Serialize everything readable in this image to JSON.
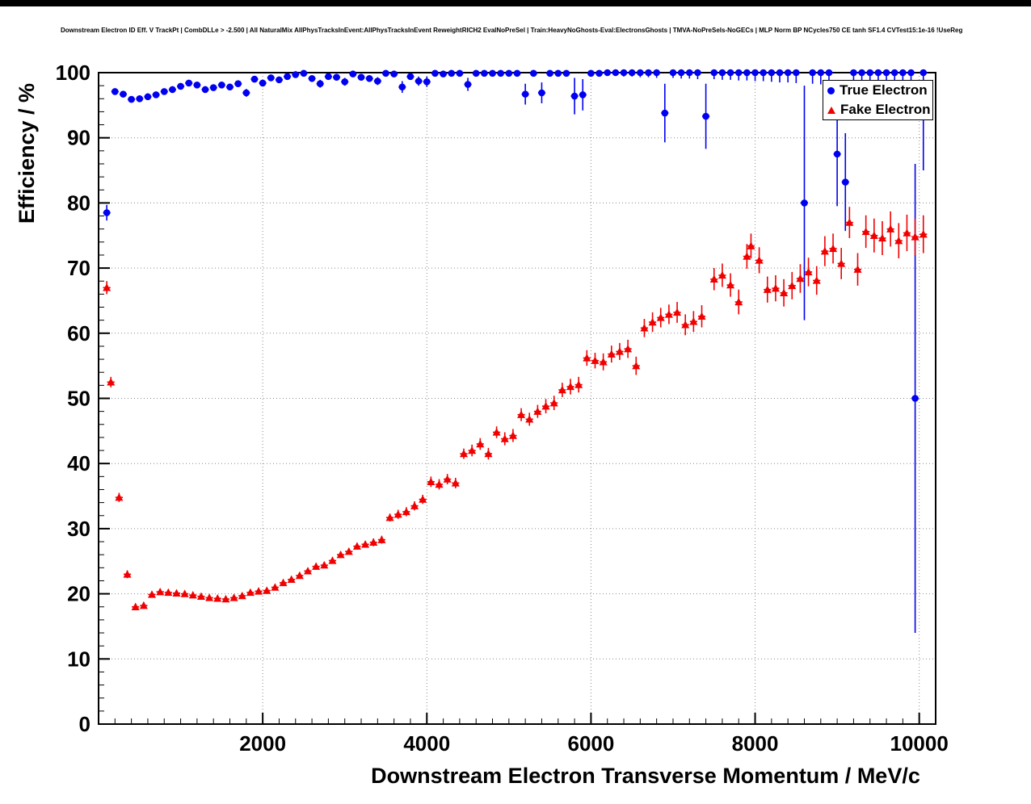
{
  "title": "Downstream Electron ID Eff. V TrackPt | CombDLLe > -2.500 | All NaturalMix AllPhysTracksInEvent:AllPhysTracksInEvent ReweightRICH2 EvalNoPreSel | Train:HeavyNoGhosts-Eval:ElectronsGhosts | TMVA-NoPreSels-NoGECs | MLP Norm BP NCycles750 CE tanh SF1.4 CVTest15:1e-16 !UseReg",
  "chart_data": {
    "type": "scatter",
    "xlabel": "Downstream Electron Transverse Momentum / MeV/c",
    "ylabel": "Efficiency / %",
    "xlim": [
      0,
      10200
    ],
    "ylim": [
      0,
      100
    ],
    "x_ticks": [
      2000,
      4000,
      6000,
      8000,
      10000
    ],
    "y_ticks": [
      0,
      10,
      20,
      30,
      40,
      50,
      60,
      70,
      80,
      90,
      100
    ],
    "grid": "dotted",
    "legend": {
      "position": "top-right",
      "entries": [
        {
          "label": "True Electron",
          "color": "#0000f0",
          "marker": "circle"
        },
        {
          "label": "Fake Electron",
          "color": "#f00000",
          "marker": "triangle"
        }
      ]
    },
    "series": [
      {
        "name": "True Electron",
        "marker": "circle",
        "color": "#0000f0",
        "points": [
          [
            100,
            78.5,
            1.2
          ],
          [
            200,
            97.1,
            0.5
          ],
          [
            300,
            96.7,
            0.5
          ],
          [
            400,
            95.9,
            0.5
          ],
          [
            500,
            96.0,
            0.5
          ],
          [
            600,
            96.3,
            0.5
          ],
          [
            700,
            96.6,
            0.4
          ],
          [
            800,
            97.1,
            0.4
          ],
          [
            900,
            97.4,
            0.4
          ],
          [
            1000,
            97.9,
            0.4
          ],
          [
            1100,
            98.4,
            0.4
          ],
          [
            1200,
            98.1,
            0.4
          ],
          [
            1300,
            97.4,
            0.5
          ],
          [
            1400,
            97.7,
            0.5
          ],
          [
            1500,
            98.1,
            0.5
          ],
          [
            1600,
            97.8,
            0.5
          ],
          [
            1700,
            98.3,
            0.5
          ],
          [
            1800,
            96.9,
            0.6
          ],
          [
            1900,
            99.0,
            0.4
          ],
          [
            2000,
            98.4,
            0.5
          ],
          [
            2100,
            99.2,
            0.4
          ],
          [
            2200,
            98.9,
            0.5
          ],
          [
            2300,
            99.4,
            0.4
          ],
          [
            2400,
            99.7,
            0.3
          ],
          [
            2500,
            99.9,
            0.2
          ],
          [
            2600,
            99.1,
            0.4
          ],
          [
            2700,
            98.3,
            0.6
          ],
          [
            2800,
            99.4,
            0.4
          ],
          [
            2900,
            99.3,
            0.4
          ],
          [
            3000,
            98.6,
            0.6
          ],
          [
            3100,
            99.8,
            0.3
          ],
          [
            3200,
            99.3,
            0.5
          ],
          [
            3300,
            99.1,
            0.5
          ],
          [
            3400,
            98.7,
            0.6
          ],
          [
            3500,
            99.9,
            0.2
          ],
          [
            3600,
            99.8,
            0.3
          ],
          [
            3700,
            97.8,
            0.9
          ],
          [
            3800,
            99.4,
            0.5
          ],
          [
            3900,
            98.7,
            0.7
          ],
          [
            4000,
            98.6,
            0.8
          ],
          [
            4100,
            99.9,
            0.2
          ],
          [
            4200,
            99.8,
            0.3
          ],
          [
            4300,
            99.9,
            0.2
          ],
          [
            4400,
            99.9,
            0.3
          ],
          [
            4500,
            98.2,
            1.0
          ],
          [
            4600,
            99.9,
            0.2
          ],
          [
            4700,
            99.9,
            0.2
          ],
          [
            4800,
            99.9,
            0.3
          ],
          [
            4900,
            99.9,
            0.3
          ],
          [
            5000,
            99.9,
            0.3
          ],
          [
            5100,
            99.9,
            0.4
          ],
          [
            5200,
            96.7,
            1.6
          ],
          [
            5300,
            99.9,
            0.3
          ],
          [
            5400,
            96.9,
            1.6
          ],
          [
            5500,
            99.9,
            0.4
          ],
          [
            5600,
            99.9,
            0.4
          ],
          [
            5700,
            99.9,
            0.4
          ],
          [
            5800,
            96.4,
            2.8
          ],
          [
            5900,
            96.6,
            2.4
          ],
          [
            6000,
            99.9,
            0.5
          ],
          [
            6100,
            99.9,
            0.5
          ],
          [
            6200,
            100,
            0.5
          ],
          [
            6300,
            100,
            0.5
          ],
          [
            6400,
            100,
            0.6
          ],
          [
            6500,
            100,
            0.6
          ],
          [
            6600,
            100,
            0.7
          ],
          [
            6700,
            100,
            0.7
          ],
          [
            6800,
            100,
            0.8
          ],
          [
            6900,
            93.8,
            4.5
          ],
          [
            7000,
            100,
            0.8
          ],
          [
            7100,
            100,
            0.9
          ],
          [
            7200,
            100,
            0.9
          ],
          [
            7300,
            100,
            1.0
          ],
          [
            7400,
            93.3,
            5.0
          ],
          [
            7500,
            100,
            1.0
          ],
          [
            7600,
            100,
            1.1
          ],
          [
            7700,
            100,
            1.1
          ],
          [
            7800,
            100,
            1.2
          ],
          [
            7900,
            100,
            1.2
          ],
          [
            8000,
            100,
            1.3
          ],
          [
            8100,
            100,
            1.3
          ],
          [
            8200,
            100,
            1.4
          ],
          [
            8300,
            100,
            1.5
          ],
          [
            8400,
            100,
            1.5
          ],
          [
            8500,
            100,
            1.6
          ],
          [
            8600,
            80.0,
            18.0
          ],
          [
            8700,
            100,
            1.7
          ],
          [
            8800,
            100,
            1.8
          ],
          [
            8900,
            100,
            1.9
          ],
          [
            9000,
            87.5,
            8.0
          ],
          [
            9100,
            83.2,
            7.5
          ],
          [
            9200,
            100,
            2.0
          ],
          [
            9300,
            100,
            2.1
          ],
          [
            9400,
            100,
            2.2
          ],
          [
            9500,
            100,
            2.3
          ],
          [
            9600,
            100,
            2.4
          ],
          [
            9700,
            100,
            2.5
          ],
          [
            9800,
            100,
            2.6
          ],
          [
            9900,
            100,
            2.8
          ],
          [
            9950,
            50.0,
            36.0
          ],
          [
            10050,
            100,
            15.0
          ]
        ]
      },
      {
        "name": "Fake Electron",
        "marker": "triangle",
        "color": "#f00000",
        "points": [
          [
            100,
            67.0,
            1.0
          ],
          [
            150,
            52.5,
            0.8
          ],
          [
            250,
            34.8,
            0.7
          ],
          [
            350,
            23.0,
            0.6
          ],
          [
            450,
            18.0,
            0.5
          ],
          [
            550,
            18.2,
            0.5
          ],
          [
            650,
            19.9,
            0.4
          ],
          [
            750,
            20.3,
            0.4
          ],
          [
            850,
            20.2,
            0.4
          ],
          [
            950,
            20.1,
            0.3
          ],
          [
            1050,
            20.0,
            0.3
          ],
          [
            1150,
            19.8,
            0.3
          ],
          [
            1250,
            19.6,
            0.3
          ],
          [
            1350,
            19.4,
            0.3
          ],
          [
            1450,
            19.3,
            0.3
          ],
          [
            1550,
            19.2,
            0.3
          ],
          [
            1650,
            19.4,
            0.3
          ],
          [
            1750,
            19.7,
            0.3
          ],
          [
            1850,
            20.2,
            0.3
          ],
          [
            1950,
            20.4,
            0.3
          ],
          [
            2050,
            20.5,
            0.3
          ],
          [
            2150,
            21.0,
            0.4
          ],
          [
            2250,
            21.7,
            0.4
          ],
          [
            2350,
            22.2,
            0.4
          ],
          [
            2450,
            22.8,
            0.4
          ],
          [
            2550,
            23.5,
            0.4
          ],
          [
            2650,
            24.2,
            0.5
          ],
          [
            2750,
            24.4,
            0.5
          ],
          [
            2850,
            25.1,
            0.5
          ],
          [
            2950,
            26.0,
            0.5
          ],
          [
            3050,
            26.5,
            0.5
          ],
          [
            3150,
            27.3,
            0.5
          ],
          [
            3250,
            27.6,
            0.5
          ],
          [
            3350,
            27.9,
            0.6
          ],
          [
            3450,
            28.3,
            0.6
          ],
          [
            3550,
            31.7,
            0.6
          ],
          [
            3650,
            32.2,
            0.7
          ],
          [
            3750,
            32.6,
            0.7
          ],
          [
            3850,
            33.5,
            0.7
          ],
          [
            3950,
            34.5,
            0.7
          ],
          [
            4050,
            37.2,
            0.8
          ],
          [
            4150,
            36.8,
            0.8
          ],
          [
            4250,
            37.6,
            0.8
          ],
          [
            4350,
            37.0,
            0.8
          ],
          [
            4450,
            41.5,
            0.8
          ],
          [
            4550,
            42.0,
            0.9
          ],
          [
            4650,
            43.0,
            0.9
          ],
          [
            4750,
            41.5,
            0.9
          ],
          [
            4850,
            44.8,
            0.9
          ],
          [
            4950,
            43.8,
            1.0
          ],
          [
            5050,
            44.3,
            1.0
          ],
          [
            5150,
            47.5,
            1.0
          ],
          [
            5250,
            46.8,
            1.0
          ],
          [
            5350,
            48.0,
            1.0
          ],
          [
            5450,
            48.8,
            1.1
          ],
          [
            5550,
            49.3,
            1.1
          ],
          [
            5650,
            51.3,
            1.1
          ],
          [
            5750,
            51.8,
            1.2
          ],
          [
            5850,
            52.1,
            1.2
          ],
          [
            5950,
            56.2,
            1.2
          ],
          [
            6050,
            55.8,
            1.2
          ],
          [
            6150,
            55.6,
            1.3
          ],
          [
            6250,
            56.8,
            1.3
          ],
          [
            6350,
            57.2,
            1.3
          ],
          [
            6450,
            57.6,
            1.4
          ],
          [
            6550,
            55.0,
            1.4
          ],
          [
            6650,
            60.8,
            1.4
          ],
          [
            6750,
            61.7,
            1.5
          ],
          [
            6850,
            62.4,
            1.5
          ],
          [
            6950,
            62.9,
            1.5
          ],
          [
            7050,
            63.2,
            1.6
          ],
          [
            7150,
            61.3,
            1.6
          ],
          [
            7250,
            61.8,
            1.6
          ],
          [
            7350,
            62.6,
            1.7
          ],
          [
            7500,
            68.3,
            1.7
          ],
          [
            7600,
            68.9,
            1.8
          ],
          [
            7700,
            67.4,
            1.8
          ],
          [
            7800,
            64.8,
            1.9
          ],
          [
            7900,
            71.8,
            1.9
          ],
          [
            7950,
            73.4,
            1.9
          ],
          [
            8050,
            71.2,
            2.0
          ],
          [
            8150,
            66.7,
            2.0
          ],
          [
            8250,
            66.9,
            2.0
          ],
          [
            8350,
            66.2,
            2.1
          ],
          [
            8450,
            67.3,
            2.1
          ],
          [
            8550,
            68.4,
            2.2
          ],
          [
            8650,
            69.4,
            2.2
          ],
          [
            8750,
            68.1,
            2.2
          ],
          [
            8850,
            72.6,
            2.3
          ],
          [
            8950,
            73.0,
            2.3
          ],
          [
            9050,
            70.7,
            2.4
          ],
          [
            9150,
            77.0,
            2.4
          ],
          [
            9250,
            69.8,
            2.5
          ],
          [
            9350,
            75.6,
            2.5
          ],
          [
            9450,
            75.0,
            2.6
          ],
          [
            9550,
            74.6,
            2.6
          ],
          [
            9650,
            76.0,
            2.7
          ],
          [
            9750,
            74.2,
            2.7
          ],
          [
            9850,
            75.4,
            2.8
          ],
          [
            9950,
            74.8,
            2.8
          ],
          [
            10050,
            75.2,
            2.9
          ]
        ]
      }
    ]
  }
}
